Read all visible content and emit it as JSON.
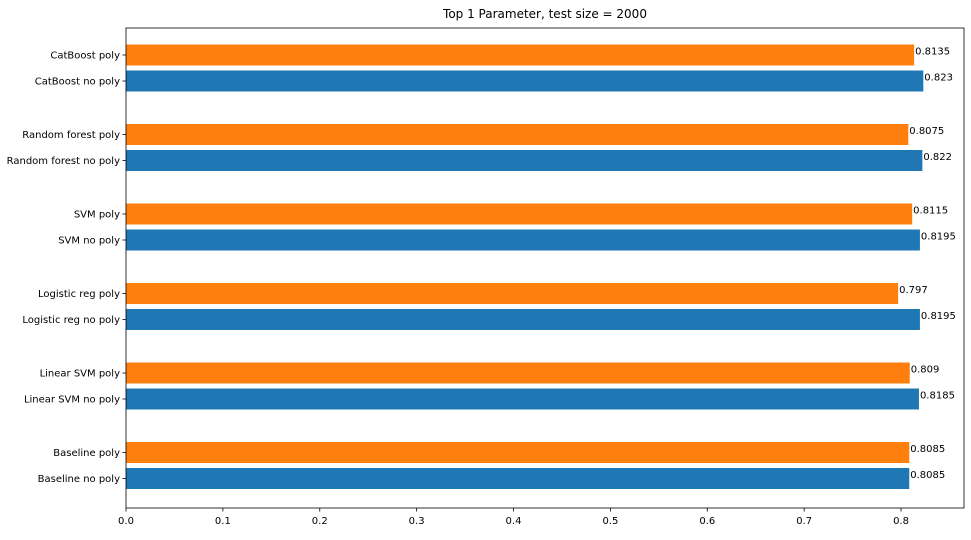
{
  "chart_data": {
    "type": "bar",
    "orientation": "horizontal",
    "title": "Top 1 Parameter, test size = 2000",
    "xlabel": "",
    "ylabel": "",
    "xlim": [
      0,
      0.865
    ],
    "xticks": [
      "0.0",
      "0.1",
      "0.2",
      "0.3",
      "0.4",
      "0.5",
      "0.6",
      "0.7",
      "0.8"
    ],
    "grid": false,
    "legend": "none",
    "colors": {
      "poly": "#ff7f0e",
      "no_poly": "#1f77b4"
    },
    "bars": [
      {
        "label": "CatBoost poly",
        "value": 0.8135,
        "value_label": "0.8135",
        "kind": "poly"
      },
      {
        "label": "CatBoost no poly",
        "value": 0.823,
        "value_label": "0.823",
        "kind": "no_poly"
      },
      {
        "label": "Random forest poly",
        "value": 0.8075,
        "value_label": "0.8075",
        "kind": "poly"
      },
      {
        "label": "Random forest no poly",
        "value": 0.822,
        "value_label": "0.822",
        "kind": "no_poly"
      },
      {
        "label": "SVM poly",
        "value": 0.8115,
        "value_label": "0.8115",
        "kind": "poly"
      },
      {
        "label": "SVM no poly",
        "value": 0.8195,
        "value_label": "0.8195",
        "kind": "no_poly"
      },
      {
        "label": "Logistic reg poly",
        "value": 0.797,
        "value_label": "0.797",
        "kind": "poly"
      },
      {
        "label": "Logistic reg no poly",
        "value": 0.8195,
        "value_label": "0.8195",
        "kind": "no_poly"
      },
      {
        "label": "Linear SVM poly",
        "value": 0.809,
        "value_label": "0.809",
        "kind": "poly"
      },
      {
        "label": "Linear SVM no poly",
        "value": 0.8185,
        "value_label": "0.8185",
        "kind": "no_poly"
      },
      {
        "label": "Baseline poly",
        "value": 0.8085,
        "value_label": "0.8085",
        "kind": "poly"
      },
      {
        "label": "Baseline no poly",
        "value": 0.8085,
        "value_label": "0.8085",
        "kind": "no_poly"
      }
    ]
  }
}
